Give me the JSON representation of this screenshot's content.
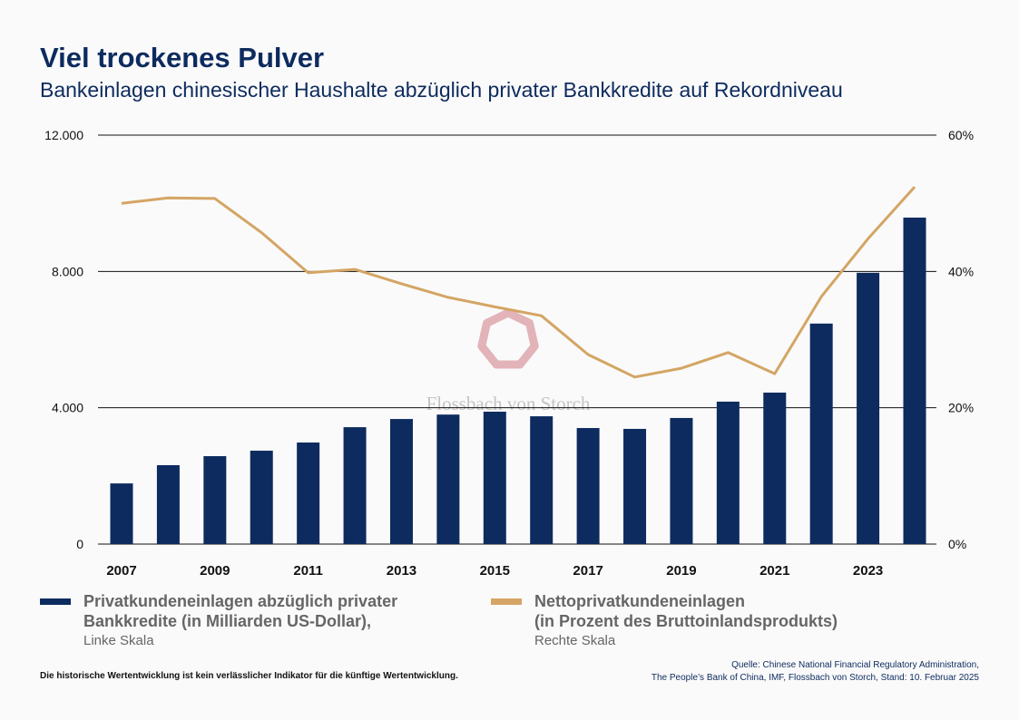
{
  "header": {
    "title": "Viel trockenes Pulver",
    "subtitle": "Bankeinlagen chinesischer Haushalte abzüglich privater Bankkredite auf Rekordniveau"
  },
  "chart_data": {
    "type": "bar+line",
    "categories": [
      "2007",
      "2008",
      "2009",
      "2010",
      "2011",
      "2012",
      "2013",
      "2014",
      "2015",
      "2016",
      "2017",
      "2018",
      "2019",
      "2020",
      "2021",
      "2022",
      "2023",
      "2024"
    ],
    "x_tick_labels": [
      "2007",
      "2009",
      "2011",
      "2013",
      "2015",
      "2017",
      "2019",
      "2021",
      "2023"
    ],
    "series": [
      {
        "name": "Privatkundeneinlagen abzüglich privater Bankkredite (in Milliarden US-Dollar),",
        "type": "bar",
        "axis": "left",
        "color": "#0d2b5e",
        "values": [
          1780,
          2315,
          2580,
          2740,
          2980,
          3430,
          3670,
          3800,
          3885,
          3750,
          3405,
          3380,
          3700,
          4180,
          4445,
          6470,
          7960,
          9580
        ]
      },
      {
        "name": "Nettoprivatkundeneinlagen (in Prozent des Bruttoinlandsprodukts)",
        "type": "line",
        "axis": "right",
        "color": "#d4a564",
        "values": [
          50.0,
          50.8,
          50.7,
          45.7,
          39.8,
          40.3,
          38.2,
          36.2,
          34.8,
          33.5,
          27.8,
          24.5,
          25.8,
          28.1,
          25.0,
          36.3,
          44.8,
          52.4
        ]
      }
    ],
    "left_axis": {
      "ylim": [
        0,
        12000
      ],
      "ticks": [
        "0",
        "4.000",
        "8.000",
        "12.000"
      ],
      "label": "Linke Skala"
    },
    "right_axis": {
      "ylim": [
        0,
        60
      ],
      "ticks": [
        "0%",
        "20%",
        "40%",
        "60%"
      ],
      "label": "Rechte Skala"
    },
    "grid": true,
    "legend_placement": "bottom"
  },
  "legend": {
    "bar_line1": "Privatkundeneinlagen abzüglich privater",
    "bar_line2": "Bankkredite (in Milliarden US-Dollar),",
    "bar_sub": "Linke Skala",
    "line_line1": "Nettoprivatkundeneinlagen",
    "line_line2": "(in Prozent des Bruttoinlandsprodukts)",
    "line_sub": "Rechte Skala"
  },
  "watermark": "Flossbach von Storch",
  "footer": {
    "disclaimer": "Die historische Wertentwicklung ist kein verlässlicher Indikator für die künftige Wertentwicklung.",
    "source_line1": "Quelle: Chinese National Financial Regulatory Administration,",
    "source_line2": "The People’s Bank of China, IMF, Flossbach von Storch, Stand: 10. Februar 2025"
  }
}
